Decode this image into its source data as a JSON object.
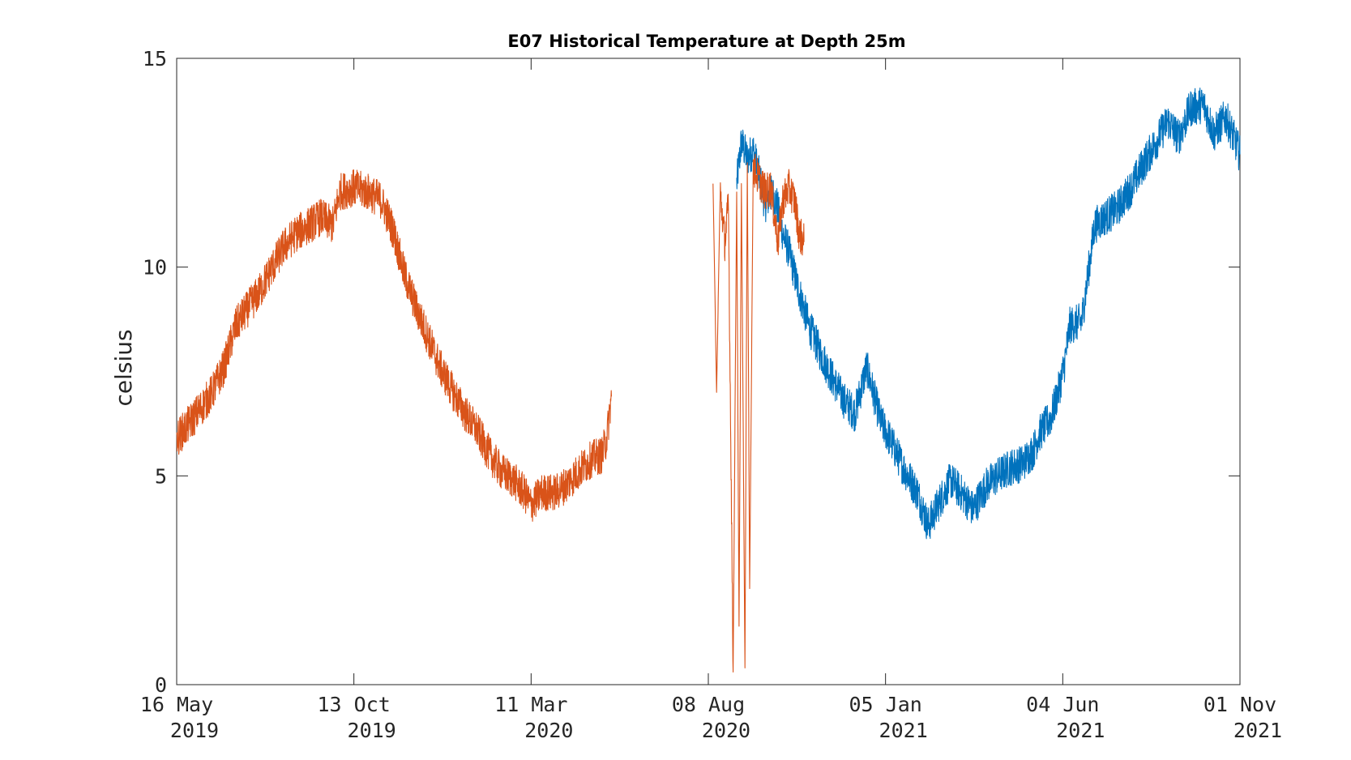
{
  "chart_data": {
    "type": "line",
    "title": "E07 Historical Temperature at Depth 25m",
    "xlabel": "",
    "ylabel": "celsius",
    "ylim": [
      0,
      15
    ],
    "xlim": [
      "2019-05-16",
      "2021-11-01"
    ],
    "grid": false,
    "legend": "none",
    "y_ticks": [
      {
        "value": 0,
        "label": "0"
      },
      {
        "value": 5,
        "label": "5"
      },
      {
        "value": 10,
        "label": "10"
      },
      {
        "value": 15,
        "label": "15"
      }
    ],
    "x_ticks": [
      {
        "date": "2019-05-16",
        "line1": "16 May",
        "line2": "2019"
      },
      {
        "date": "2019-10-13",
        "line1": "13 Oct",
        "line2": "2019"
      },
      {
        "date": "2020-03-11",
        "line1": "11 Mar",
        "line2": "2020"
      },
      {
        "date": "2020-08-08",
        "line1": "08 Aug",
        "line2": "2020"
      },
      {
        "date": "2021-01-05",
        "line1": "05 Jan",
        "line2": "2021"
      },
      {
        "date": "2021-06-04",
        "line1": "04 Jun",
        "line2": "2021"
      },
      {
        "date": "2021-11-01",
        "line1": "01 Nov",
        "line2": "2021"
      }
    ],
    "series": [
      {
        "color": "#0072BD",
        "x": [
          "2020-09-01",
          "2020-09-05",
          "2020-09-10",
          "2020-09-15",
          "2020-09-20",
          "2020-09-25",
          "2020-10-01",
          "2020-10-05",
          "2020-10-10",
          "2020-10-15",
          "2020-10-22",
          "2020-11-01",
          "2020-11-10",
          "2020-11-20",
          "2020-12-01",
          "2020-12-10",
          "2020-12-20",
          "2021-01-01",
          "2021-01-10",
          "2021-01-20",
          "2021-02-01",
          "2021-02-10",
          "2021-02-20",
          "2021-03-01",
          "2021-03-10",
          "2021-03-20",
          "2021-04-01",
          "2021-04-10",
          "2021-04-20",
          "2021-05-01",
          "2021-05-10",
          "2021-05-15",
          "2021-05-25",
          "2021-06-01",
          "2021-06-05",
          "2021-06-10",
          "2021-06-20",
          "2021-07-01",
          "2021-07-10",
          "2021-07-20",
          "2021-08-01",
          "2021-08-10",
          "2021-08-20",
          "2021-09-01",
          "2021-09-10",
          "2021-09-20",
          "2021-10-01",
          "2021-10-10",
          "2021-10-20",
          "2021-11-01"
        ],
        "y": [
          12.0,
          13.0,
          12.6,
          12.8,
          12.2,
          11.5,
          11.8,
          11.5,
          10.8,
          10.4,
          9.6,
          8.6,
          8.0,
          7.4,
          6.8,
          6.5,
          7.6,
          6.3,
          5.8,
          5.2,
          4.6,
          3.8,
          4.4,
          4.9,
          4.6,
          4.2,
          4.8,
          5.0,
          5.2,
          5.3,
          5.6,
          6.0,
          6.4,
          7.1,
          7.6,
          8.6,
          8.7,
          11.0,
          11.2,
          11.4,
          11.9,
          12.4,
          12.9,
          13.5,
          13.1,
          13.8,
          13.9,
          13.2,
          13.6,
          12.7
        ]
      },
      {
        "color": "#D95319",
        "x": [
          "2019-05-16",
          "2019-05-25",
          "2019-06-05",
          "2019-06-15",
          "2019-06-25",
          "2019-07-05",
          "2019-07-15",
          "2019-07-25",
          "2019-08-05",
          "2019-08-15",
          "2019-08-25",
          "2019-09-05",
          "2019-09-15",
          "2019-09-25",
          "2019-10-01",
          "2019-10-13",
          "2019-10-25",
          "2019-11-05",
          "2019-11-15",
          "2019-11-25",
          "2019-12-05",
          "2019-12-15",
          "2019-12-25",
          "2020-01-05",
          "2020-01-15",
          "2020-01-25",
          "2020-02-05",
          "2020-02-15",
          "2020-02-25",
          "2020-03-05",
          "2020-03-11",
          "2020-03-20",
          "2020-04-01",
          "2020-04-10",
          "2020-04-20",
          "2020-05-01",
          "2020-05-10",
          "2020-05-14",
          "2020-05-18",
          null,
          "2020-08-12",
          "2020-08-15",
          "2020-08-18",
          "2020-08-22",
          "2020-08-25",
          "2020-08-29",
          "2020-09-01",
          "2020-09-03",
          "2020-09-05",
          "2020-09-08",
          "2020-09-10",
          "2020-09-12",
          "2020-09-15",
          "2020-09-20",
          "2020-09-25",
          "2020-09-30",
          "2020-10-03",
          "2020-10-06",
          "2020-10-10",
          "2020-10-15",
          "2020-10-20",
          "2020-10-24",
          "2020-10-28"
        ],
        "y": [
          5.9,
          6.2,
          6.6,
          7.0,
          7.6,
          8.6,
          9.0,
          9.4,
          10.0,
          10.5,
          10.8,
          11.0,
          11.2,
          11.0,
          11.8,
          11.9,
          11.8,
          11.6,
          10.9,
          9.8,
          9.0,
          8.3,
          7.6,
          7.0,
          6.5,
          6.1,
          5.5,
          5.1,
          4.9,
          4.6,
          4.3,
          4.6,
          4.6,
          4.8,
          5.1,
          5.4,
          5.5,
          5.9,
          6.9,
          null,
          12.0,
          7.0,
          11.8,
          10.6,
          11.5,
          0.3,
          11.8,
          1.4,
          12.0,
          0.4,
          12.5,
          2.3,
          12.4,
          12.1,
          11.8,
          11.9,
          11.2,
          10.6,
          11.6,
          11.9,
          11.6,
          10.8,
          10.6
        ]
      }
    ]
  }
}
